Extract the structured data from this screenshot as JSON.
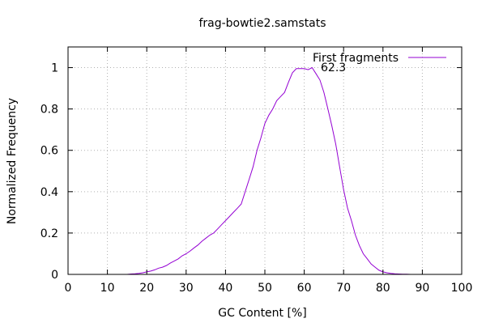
{
  "chart_data": {
    "type": "line",
    "title": "frag-bowtie2.samstats",
    "xlabel": "GC Content [%]",
    "ylabel": "Normalized Frequency",
    "xlim": [
      0,
      100
    ],
    "ylim": [
      0,
      1.1
    ],
    "xticks": [
      "0",
      "10",
      "20",
      "30",
      "40",
      "50",
      "60",
      "70",
      "80",
      "90",
      "100"
    ],
    "yticks": [
      "0",
      "0.2",
      "0.4",
      "0.6",
      "0.8",
      "1"
    ],
    "grid": true,
    "legend_position": "top-right",
    "annotation": {
      "text": "62.3",
      "x": 62.3,
      "y": 1.0
    },
    "series": [
      {
        "name": "First fragments",
        "color": "#9400d3",
        "x": [
          15,
          16,
          17,
          18,
          19,
          20,
          21,
          22,
          23,
          24,
          25,
          26,
          27,
          28,
          29,
          30,
          31,
          32,
          33,
          34,
          35,
          36,
          37,
          38,
          39,
          40,
          41,
          42,
          43,
          44,
          45,
          46,
          47,
          48,
          49,
          50,
          51,
          52,
          53,
          54,
          55,
          56,
          57,
          58,
          59,
          60,
          61,
          62,
          63,
          64,
          65,
          66,
          67,
          68,
          69,
          70,
          71,
          72,
          73,
          74,
          75,
          76,
          77,
          78,
          79,
          80,
          81,
          82,
          83,
          84,
          85,
          86,
          87,
          88,
          89,
          90
        ],
        "y": [
          0.0,
          0.002,
          0.003,
          0.005,
          0.008,
          0.012,
          0.016,
          0.022,
          0.03,
          0.035,
          0.043,
          0.055,
          0.065,
          0.075,
          0.09,
          0.1,
          0.113,
          0.128,
          0.142,
          0.16,
          0.175,
          0.19,
          0.2,
          0.22,
          0.24,
          0.26,
          0.28,
          0.3,
          0.32,
          0.34,
          0.4,
          0.46,
          0.52,
          0.6,
          0.66,
          0.73,
          0.77,
          0.8,
          0.84,
          0.86,
          0.88,
          0.93,
          0.975,
          0.995,
          0.995,
          0.995,
          0.99,
          1.0,
          0.97,
          0.94,
          0.88,
          0.8,
          0.72,
          0.63,
          0.52,
          0.41,
          0.32,
          0.26,
          0.19,
          0.14,
          0.1,
          0.075,
          0.05,
          0.035,
          0.02,
          0.012,
          0.008,
          0.005,
          0.003,
          0.002,
          0.001,
          0.001,
          0.0,
          0.0,
          0.0,
          0.0
        ]
      }
    ]
  }
}
